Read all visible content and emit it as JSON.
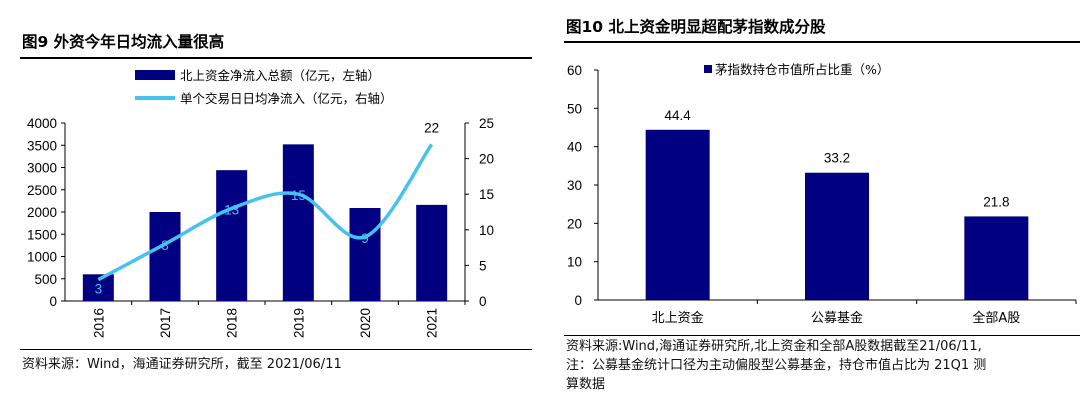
{
  "left": {
    "title": "图9  外资今年日均流入量很高",
    "source": "资料来源：Wind，海通证券研究所，截至 2021/06/11",
    "chart_data": {
      "type": "bar+line",
      "categories": [
        "2016",
        "2017",
        "2018",
        "2019",
        "2020",
        "2021"
      ],
      "series": [
        {
          "name": "北上资金净流入总额（亿元，左轴）",
          "type": "bar",
          "axis": "left",
          "color": "#000080",
          "values": [
            600,
            2000,
            2940,
            3520,
            2090,
            2160
          ]
        },
        {
          "name": "单个交易日日均净流入（亿元，右轴）",
          "type": "line",
          "axis": "right",
          "color": "#45C2F0",
          "values": [
            3,
            8,
            13,
            15,
            9,
            22
          ],
          "labels": [
            "3",
            "8",
            "13",
            "15",
            "9",
            "22"
          ]
        }
      ],
      "y_left": {
        "min": 0,
        "max": 4000,
        "ticks": [
          "0",
          "500",
          "1000",
          "1500",
          "2000",
          "2500",
          "3000",
          "3500",
          "4000"
        ]
      },
      "y_right": {
        "min": 0,
        "max": 25,
        "ticks": [
          "0",
          "5",
          "10",
          "15",
          "20",
          "25"
        ]
      },
      "legend": "top"
    }
  },
  "right": {
    "title": "图10 北上资金明显超配茅指数成分股",
    "source_lines": [
      "资料来源:Wind,海通证券研究所,北上资金和全部A股数据截至21/06/11,",
      "注：公募基金统计口径为主动偏股型公募基金，持仓市值占比为 21Q1 测",
      "算数据"
    ],
    "chart_data": {
      "type": "bar",
      "categories": [
        "北上资金",
        "公募基金",
        "全部A股"
      ],
      "series": [
        {
          "name": "茅指数持仓市值所占比重（%）",
          "color": "#000080",
          "values": [
            44.4,
            33.2,
            21.8
          ],
          "labels": [
            "44.4",
            "33.2",
            "21.8"
          ]
        }
      ],
      "y": {
        "min": 0,
        "max": 60,
        "ticks": [
          "0",
          "10",
          "20",
          "30",
          "40",
          "50",
          "60"
        ]
      },
      "legend": "top"
    }
  }
}
